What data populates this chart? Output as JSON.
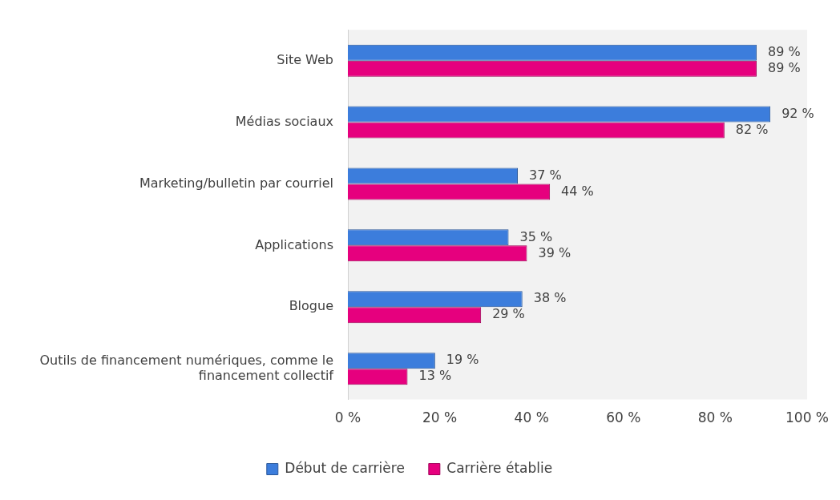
{
  "chart_data": {
    "type": "bar",
    "orientation": "horizontal",
    "categories": [
      "Site Web",
      "Médias sociaux",
      "Marketing/bulletin par courriel",
      "Applications",
      "Blogue",
      "Outils de financement numériques, comme le financement collectif"
    ],
    "series": [
      {
        "name": "Début de carrière",
        "color": "#3c7ddc",
        "values": [
          89,
          92,
          37,
          35,
          38,
          19
        ],
        "value_labels": [
          "89 %",
          "92 %",
          "37 %",
          "35 %",
          "38 %",
          "19 %"
        ]
      },
      {
        "name": "Carrière établie",
        "color": "#e6007e",
        "values": [
          89,
          82,
          44,
          39,
          29,
          13
        ],
        "value_labels": [
          "89 %",
          "82 %",
          "44 %",
          "39 %",
          "29 %",
          "13 %"
        ]
      }
    ],
    "xlim": [
      0,
      100
    ],
    "xticks": [
      {
        "value": 0,
        "label": "0 %"
      },
      {
        "value": 20,
        "label": "20 %"
      },
      {
        "value": 40,
        "label": "40 %"
      },
      {
        "value": 60,
        "label": "60 %"
      },
      {
        "value": 80,
        "label": "80 %"
      },
      {
        "value": 100,
        "label": "100 %"
      }
    ],
    "grid": false,
    "legend": "bottom"
  }
}
